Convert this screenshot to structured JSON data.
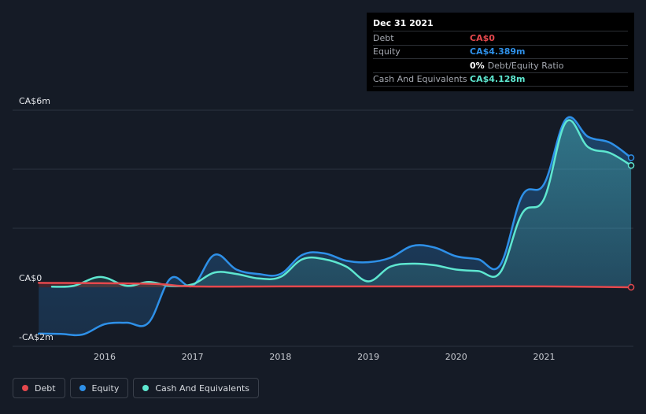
{
  "chart_data": {
    "type": "area",
    "ylim": [
      -2,
      6
    ],
    "x_ticks": [
      "2016",
      "2017",
      "2018",
      "2019",
      "2020",
      "2021"
    ],
    "y_ticks": [
      "CA$6m",
      "CA$0",
      "-CA$2m"
    ],
    "series": [
      {
        "name": "Debt",
        "color": "#e5484d",
        "x": [
          2015.25,
          2016.5,
          2017.0,
          2018.0,
          2019.0,
          2020.0,
          2021.0,
          2021.99
        ],
        "y": [
          0.15,
          0.12,
          0.03,
          0.03,
          0.03,
          0.03,
          0.03,
          0.0
        ]
      },
      {
        "name": "Equity",
        "color": "#2e90e8",
        "x": [
          2015.25,
          2015.5,
          2015.75,
          2016.0,
          2016.25,
          2016.5,
          2016.75,
          2017.0,
          2017.25,
          2017.5,
          2017.75,
          2018.0,
          2018.25,
          2018.5,
          2018.75,
          2019.0,
          2019.25,
          2019.5,
          2019.75,
          2020.0,
          2020.25,
          2020.5,
          2020.75,
          2021.0,
          2021.25,
          2021.5,
          2021.75,
          2021.99
        ],
        "y": [
          -1.57,
          -1.58,
          -1.6,
          -1.25,
          -1.2,
          -1.2,
          0.3,
          0.05,
          1.1,
          0.6,
          0.45,
          0.45,
          1.1,
          1.15,
          0.9,
          0.85,
          1.0,
          1.4,
          1.35,
          1.05,
          0.95,
          0.75,
          3.1,
          3.5,
          5.7,
          5.1,
          4.9,
          4.389
        ]
      },
      {
        "name": "Cash And Equivalents",
        "color": "#5ee7d0",
        "x": [
          2015.4,
          2015.65,
          2015.95,
          2016.25,
          2016.5,
          2016.75,
          2017.0,
          2017.25,
          2017.5,
          2017.75,
          2018.0,
          2018.25,
          2018.5,
          2018.75,
          2019.0,
          2019.25,
          2019.5,
          2019.75,
          2020.0,
          2020.25,
          2020.5,
          2020.75,
          2021.0,
          2021.25,
          2021.5,
          2021.75,
          2021.99
        ],
        "y": [
          0.02,
          0.05,
          0.35,
          0.05,
          0.18,
          0.05,
          0.1,
          0.5,
          0.45,
          0.3,
          0.35,
          0.95,
          0.95,
          0.7,
          0.2,
          0.7,
          0.8,
          0.75,
          0.6,
          0.55,
          0.5,
          2.5,
          3.0,
          5.6,
          4.75,
          4.55,
          4.128
        ]
      }
    ]
  },
  "tooltip": {
    "date": "Dec 31 2021",
    "rows": [
      {
        "label": "Debt",
        "value": "CA$0",
        "color": "#e5484d"
      },
      {
        "label": "Equity",
        "value": "CA$4.389m",
        "color": "#2e90e8"
      },
      {
        "label": "",
        "value": "0%",
        "extra": "Debt/Equity Ratio",
        "color": "#ffffff"
      },
      {
        "label": "Cash And Equivalents",
        "value": "CA$4.128m",
        "color": "#5ee7d0"
      }
    ]
  },
  "legend": [
    {
      "label": "Debt",
      "color": "#e5484d"
    },
    {
      "label": "Equity",
      "color": "#2e90e8"
    },
    {
      "label": "Cash And Equivalents",
      "color": "#5ee7d0"
    }
  ]
}
